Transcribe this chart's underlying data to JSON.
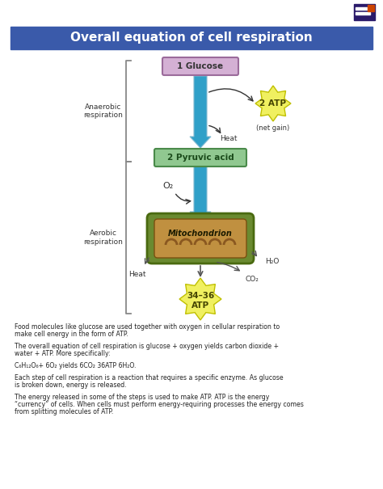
{
  "title": "Overall equation of cell respiration",
  "title_bg": "#3a5aaa",
  "title_color": "#ffffff",
  "bg_color": "#ffffff",
  "diagram": {
    "glucose_box": {
      "text": "1 Glucose",
      "color": "#d4b0d4",
      "border": "#9b6b9b"
    },
    "atp_box": {
      "text": "2 ATP",
      "color": "#f0f060",
      "border": "#c0c000"
    },
    "net_gain_text": "(net gain)",
    "heat_text1": "Heat",
    "pyruvic_box": {
      "text": "2 Pyruvic acid",
      "color": "#90c890",
      "border": "#4a8a4a"
    },
    "o2_text": "O₂",
    "mito_outer_color": "#6a8a30",
    "mito_inner_color": "#c09040",
    "mito_crista_color": "#8a5820",
    "mito_label": "Mitochondrion",
    "heat_text2": "Heat",
    "h2o_text": "H₂O",
    "co2_text": "CO₂",
    "atp2_text": "34–36\nATP",
    "atp2_color": "#f0f060",
    "atp2_border": "#c0c000",
    "anaerobic_label": "Anaerobic\nrespiration",
    "aerobic_label": "Aerobic\nrespiration",
    "arrow_color_top": "#90c8e0",
    "arrow_color_bot": "#30a0c8",
    "bracket_color": "#888888"
  },
  "text_blocks": [
    "Food molecules like glucose are used together with oxygen in cellular respiration to make cell energy in the form of ATP.",
    "The overall equation of cell respiration is glucose + oxygen yields carbon dioxide + water + ATP. More specifically:",
    "C₆H₁₂O₆+ 6O₂ yields 6CO₂ 36ATP 6H₂O.",
    "Each step of cell respiration is a reaction that requires a specific enzyme. As glucose is broken down, energy is released.",
    "The energy released in some of the steps is used to make ATP. ATP is the energy “currency” of cells. When cells must perform energy-requiring processes the energy comes from splitting molecules of ATP."
  ],
  "logo_bg": "#2a1a6a",
  "logo_stripe": "#ffffff",
  "logo_orange": "#cc4400"
}
